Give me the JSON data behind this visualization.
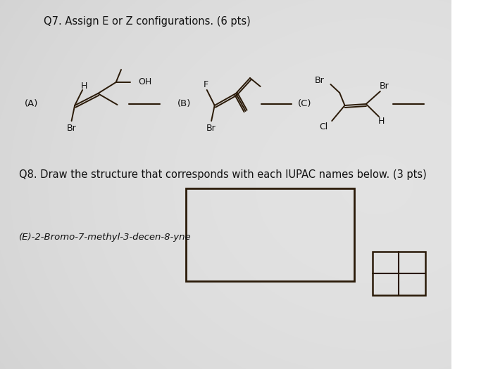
{
  "title_q7": "Q7. Assign E or Z configurations. (6 pts)",
  "title_q8": "Q8. Draw the structure that corresponds with each IUPAC names below. (3 pts)",
  "compound_label": "(E)-2-Bromo-7-methyl-3-decen-8-yne",
  "bg_color": "#c8c8c8",
  "text_color": "#111111",
  "line_color": "#2a1a08",
  "font_size_title": 10.5,
  "font_size_label": 9.5,
  "font_size_atom": 8.5
}
